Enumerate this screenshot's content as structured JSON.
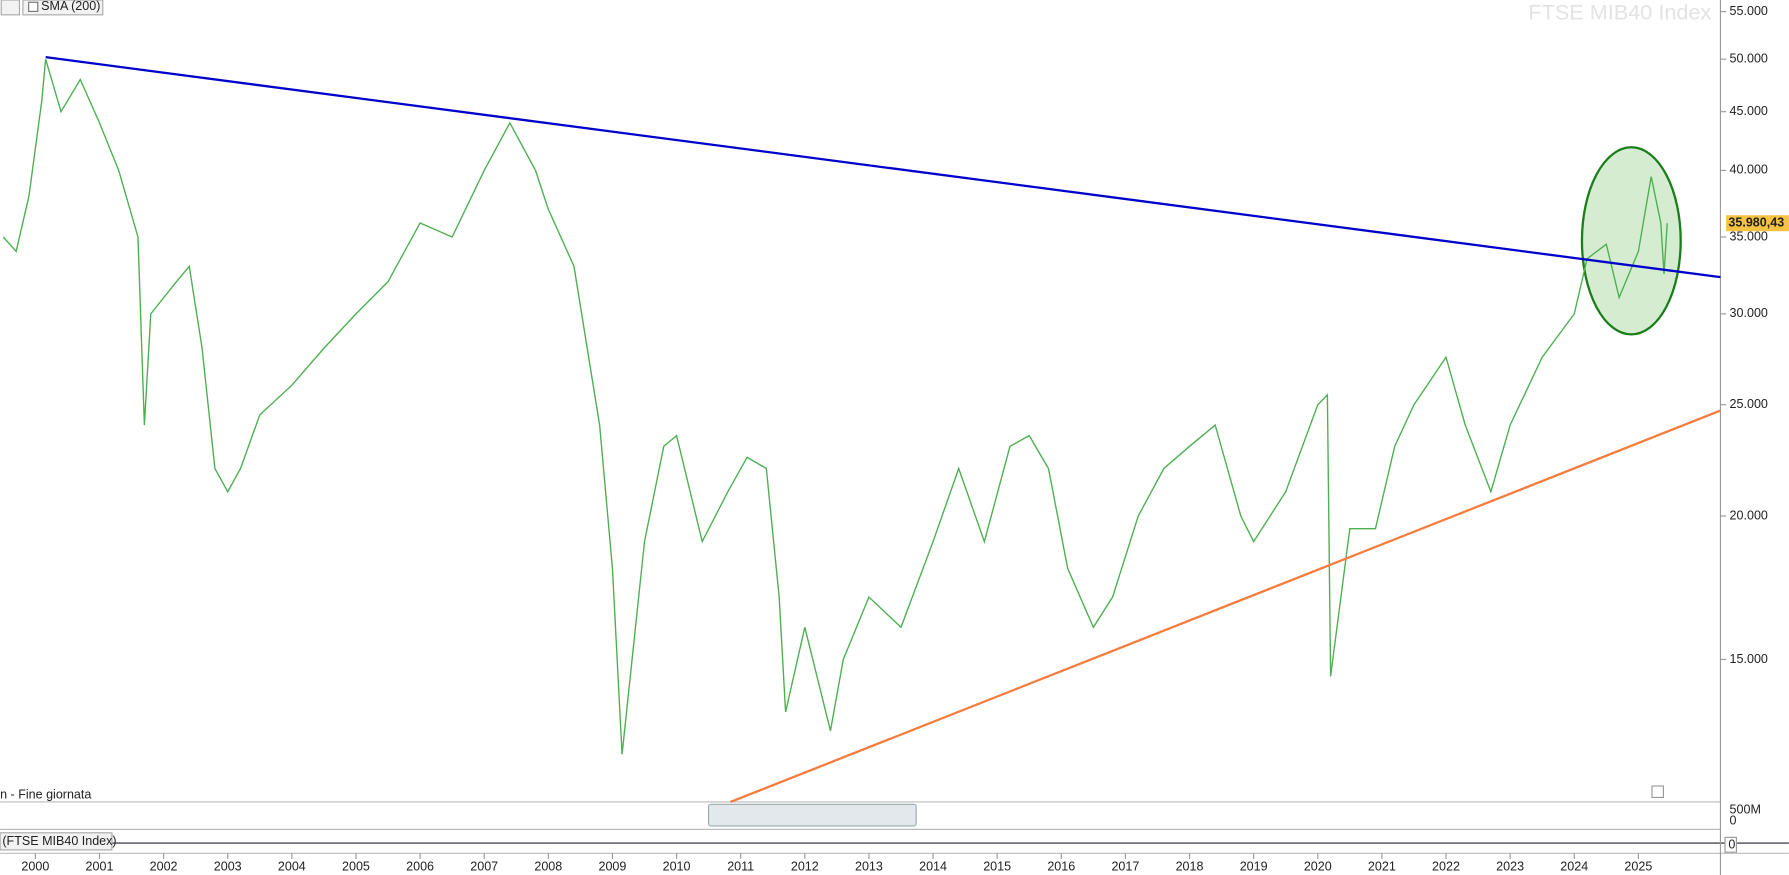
{
  "chart_data": {
    "type": "line",
    "title": "FTSE MIB40 Index",
    "toolbar_label": "SMA (200)",
    "period_label": "n - Fine giornata",
    "lower_pane_label": "(FTSE MIB40 Index)",
    "volume_ticks": [
      "500M",
      "0"
    ],
    "lower_pane_tick": "0",
    "yscale": "log",
    "xlim": [
      1999.45,
      2026.28
    ],
    "ylim": [
      11270,
      56300
    ],
    "xticks": [
      2000,
      2001,
      2002,
      2003,
      2004,
      2005,
      2006,
      2007,
      2008,
      2009,
      2010,
      2011,
      2012,
      2013,
      2014,
      2015,
      2016,
      2017,
      2018,
      2019,
      2020,
      2021,
      2022,
      2023,
      2024,
      2025
    ],
    "yticks": [
      {
        "value": 15000,
        "label": "15.000"
      },
      {
        "value": 20000,
        "label": "20.000"
      },
      {
        "value": 25000,
        "label": "25.000"
      },
      {
        "value": 30000,
        "label": "30.000"
      },
      {
        "value": 35000,
        "label": "35.000"
      },
      {
        "value": 40000,
        "label": "40.000"
      },
      {
        "value": 45000,
        "label": "45.000"
      },
      {
        "value": 50000,
        "label": "50.000"
      },
      {
        "value": 55000,
        "label": "55.000"
      }
    ],
    "color": "#4caf50",
    "x": [
      1999.5,
      1999.7,
      1999.9,
      2000.1,
      2000.16,
      2000.4,
      2000.7,
      2001.0,
      2001.3,
      2001.6,
      2001.7,
      2001.8,
      2002.2,
      2002.4,
      2002.6,
      2002.8,
      2003.0,
      2003.2,
      2003.5,
      2004.0,
      2004.5,
      2005.0,
      2005.5,
      2006.0,
      2006.5,
      2007.0,
      2007.4,
      2007.8,
      2008.0,
      2008.4,
      2008.8,
      2009.0,
      2009.15,
      2009.5,
      2009.8,
      2010.0,
      2010.4,
      2010.8,
      2011.1,
      2011.4,
      2011.6,
      2011.7,
      2012.0,
      2012.4,
      2012.6,
      2013.0,
      2013.5,
      2014.0,
      2014.4,
      2014.8,
      2015.2,
      2015.5,
      2015.8,
      2016.1,
      2016.5,
      2016.8,
      2017.2,
      2017.6,
      2018.0,
      2018.4,
      2018.8,
      2019.0,
      2019.5,
      2020.0,
      2020.15,
      2020.2,
      2020.5,
      2020.9,
      2021.2,
      2021.5,
      2022.0,
      2022.3,
      2022.7,
      2023.0,
      2023.5,
      2024.0,
      2024.2,
      2024.5,
      2024.7,
      2025.0,
      2025.2,
      2025.35,
      2025.4,
      2025.45
    ],
    "values": [
      35000,
      34000,
      38000,
      46000,
      50000,
      45000,
      48000,
      44000,
      40000,
      35000,
      24000,
      30000,
      32000,
      33000,
      28000,
      22000,
      21000,
      22000,
      24500,
      26000,
      28000,
      30000,
      32000,
      36000,
      35000,
      40000,
      44000,
      40000,
      37000,
      33000,
      24000,
      18000,
      12400,
      19000,
      23000,
      23500,
      19000,
      21000,
      22500,
      22000,
      17000,
      13500,
      16000,
      13000,
      15000,
      17000,
      16000,
      19000,
      22000,
      19000,
      23000,
      23500,
      22000,
      18000,
      16000,
      17000,
      20000,
      22000,
      23000,
      24000,
      20000,
      19000,
      21000,
      25000,
      25500,
      14500,
      19500,
      19500,
      23000,
      25000,
      27500,
      24000,
      21000,
      24000,
      27500,
      30000,
      33500,
      34500,
      31000,
      34000,
      39500,
      36000,
      32500,
      35980.43
    ],
    "last_label": {
      "value": 35980.43,
      "label": "35.980,43"
    },
    "trendlines": [
      {
        "color": "#0000cc",
        "x": [
          2000.16,
          2026.28
        ],
        "y": [
          50200,
          32290
        ]
      },
      {
        "color": "#f47c3c",
        "x": [
          2010.84,
          2026.28
        ],
        "y": [
          11270,
          24710
        ]
      }
    ],
    "ellipse": {
      "x": [
        2024.12,
        2025.66
      ],
      "y": [
        28790,
        41900
      ],
      "color": "#1a7f1a",
      "fill": "#d6ecd0"
    }
  }
}
